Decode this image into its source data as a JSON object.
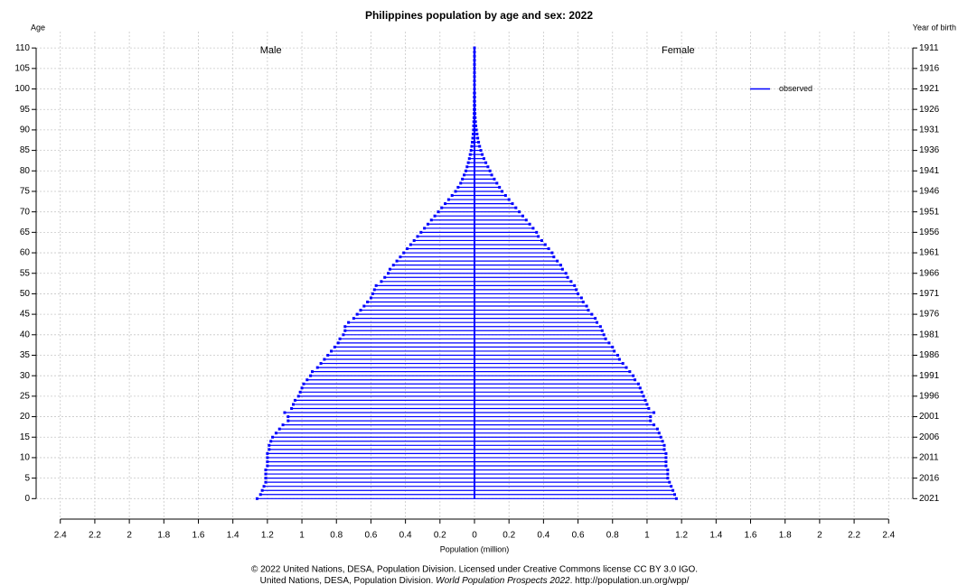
{
  "chart_data": {
    "type": "pyramid",
    "title": "Philippines population by age and sex: 2022",
    "y_label": "Age",
    "y2_label": "Year of birth",
    "x_label": "Population (million)",
    "legend_label": "observed",
    "legend_position": "upper right",
    "footer": [
      "© 2022 United Nations, DESA, Population Division. Licensed under Creative Commons license CC BY 3.0 IGO.",
      "United Nations, DESA, Population Division. ",
      "World Population Prospects 2022",
      ". http://population.un.org/wpp/"
    ],
    "y": [
      0,
      1,
      2,
      3,
      4,
      5,
      6,
      7,
      8,
      9,
      10,
      11,
      12,
      13,
      14,
      15,
      16,
      17,
      18,
      19,
      20,
      21,
      22,
      23,
      24,
      25,
      26,
      27,
      28,
      29,
      30,
      31,
      32,
      33,
      34,
      35,
      36,
      37,
      38,
      39,
      40,
      41,
      42,
      43,
      44,
      45,
      46,
      47,
      48,
      49,
      50,
      51,
      52,
      53,
      54,
      55,
      56,
      57,
      58,
      59,
      60,
      61,
      62,
      63,
      64,
      65,
      66,
      67,
      68,
      69,
      70,
      71,
      72,
      73,
      74,
      75,
      76,
      77,
      78,
      79,
      80,
      81,
      82,
      83,
      84,
      85,
      86,
      87,
      88,
      89,
      90,
      91,
      92,
      93,
      94,
      95,
      96,
      97,
      98,
      99,
      100,
      101,
      102,
      103,
      104,
      105,
      106,
      107,
      108,
      109,
      110
    ],
    "series": [
      {
        "name": "Male",
        "color": "#0000ff",
        "values": [
          -1.26,
          -1.24,
          -1.23,
          -1.22,
          -1.21,
          -1.21,
          -1.21,
          -1.21,
          -1.2,
          -1.2,
          -1.2,
          -1.2,
          -1.19,
          -1.19,
          -1.18,
          -1.17,
          -1.15,
          -1.13,
          -1.11,
          -1.08,
          -1.08,
          -1.1,
          -1.06,
          -1.05,
          -1.04,
          -1.02,
          -1.01,
          -1.0,
          -0.99,
          -0.97,
          -0.95,
          -0.94,
          -0.91,
          -0.89,
          -0.87,
          -0.85,
          -0.83,
          -0.81,
          -0.79,
          -0.78,
          -0.76,
          -0.75,
          -0.75,
          -0.73,
          -0.7,
          -0.68,
          -0.66,
          -0.64,
          -0.62,
          -0.6,
          -0.59,
          -0.58,
          -0.57,
          -0.54,
          -0.52,
          -0.5,
          -0.49,
          -0.47,
          -0.45,
          -0.43,
          -0.41,
          -0.39,
          -0.37,
          -0.35,
          -0.33,
          -0.31,
          -0.29,
          -0.27,
          -0.25,
          -0.23,
          -0.21,
          -0.19,
          -0.17,
          -0.15,
          -0.13,
          -0.11,
          -0.095,
          -0.08,
          -0.07,
          -0.06,
          -0.05,
          -0.043,
          -0.036,
          -0.03,
          -0.025,
          -0.02,
          -0.016,
          -0.013,
          -0.01,
          -0.008,
          -0.006,
          -0.005,
          -0.004,
          -0.003,
          -0.002,
          -0.002,
          -0.001,
          -0.001,
          -0.001,
          -0.001,
          0,
          0,
          0,
          0,
          0,
          0,
          0,
          0,
          0,
          0,
          0
        ]
      },
      {
        "name": "Female",
        "color": "#0000ff",
        "values": [
          1.17,
          1.16,
          1.15,
          1.14,
          1.13,
          1.12,
          1.12,
          1.12,
          1.11,
          1.11,
          1.11,
          1.11,
          1.1,
          1.1,
          1.09,
          1.08,
          1.07,
          1.06,
          1.04,
          1.02,
          1.02,
          1.04,
          1.01,
          1.0,
          0.99,
          0.98,
          0.97,
          0.96,
          0.95,
          0.93,
          0.92,
          0.9,
          0.88,
          0.86,
          0.84,
          0.83,
          0.81,
          0.8,
          0.78,
          0.76,
          0.75,
          0.74,
          0.73,
          0.71,
          0.7,
          0.68,
          0.66,
          0.65,
          0.63,
          0.62,
          0.6,
          0.59,
          0.58,
          0.56,
          0.54,
          0.53,
          0.51,
          0.5,
          0.48,
          0.46,
          0.45,
          0.43,
          0.41,
          0.39,
          0.37,
          0.36,
          0.34,
          0.32,
          0.3,
          0.28,
          0.26,
          0.24,
          0.22,
          0.2,
          0.18,
          0.16,
          0.145,
          0.13,
          0.115,
          0.1,
          0.09,
          0.078,
          0.066,
          0.055,
          0.045,
          0.037,
          0.03,
          0.024,
          0.019,
          0.015,
          0.011,
          0.008,
          0.006,
          0.004,
          0.003,
          0.002,
          0.0015,
          0.001,
          0.001,
          0.001,
          0,
          0,
          0,
          0,
          0,
          0,
          0,
          0,
          0,
          0,
          0
        ]
      }
    ],
    "xlim": [
      -2.54,
      2.54
    ],
    "xticks": [
      {
        "value": -2.4,
        "label": "2.4"
      },
      {
        "value": -2.2,
        "label": "2.2"
      },
      {
        "value": -2,
        "label": "2"
      },
      {
        "value": -1.8,
        "label": "1.8"
      },
      {
        "value": -1.6,
        "label": "1.6"
      },
      {
        "value": -1.4,
        "label": "1.4"
      },
      {
        "value": -1.2,
        "label": "1.2"
      },
      {
        "value": -1,
        "label": "1"
      },
      {
        "value": -0.8,
        "label": "0.8"
      },
      {
        "value": -0.6,
        "label": "0.6"
      },
      {
        "value": -0.4,
        "label": "0.4"
      },
      {
        "value": -0.2,
        "label": "0.2"
      },
      0,
      0.2,
      0.4,
      0.6,
      0.8,
      1,
      1.2,
      1.4,
      1.6,
      1.8,
      2,
      2.2,
      2.4
    ],
    "ylim": [
      -5,
      114
    ],
    "yticks": [
      0,
      5,
      10,
      15,
      20,
      25,
      30,
      35,
      40,
      45,
      50,
      55,
      60,
      65,
      70,
      75,
      80,
      85,
      90,
      95,
      100,
      105,
      110
    ],
    "y2lim": [
      2026,
      1907
    ],
    "y2ticks": [
      2021,
      2016,
      2011,
      2006,
      2001,
      1996,
      1991,
      1986,
      1981,
      1976,
      1971,
      1966,
      1961,
      1956,
      1951,
      1946,
      1941,
      1936,
      1931,
      1926,
      1921,
      1916,
      1911
    ],
    "grid": true
  }
}
